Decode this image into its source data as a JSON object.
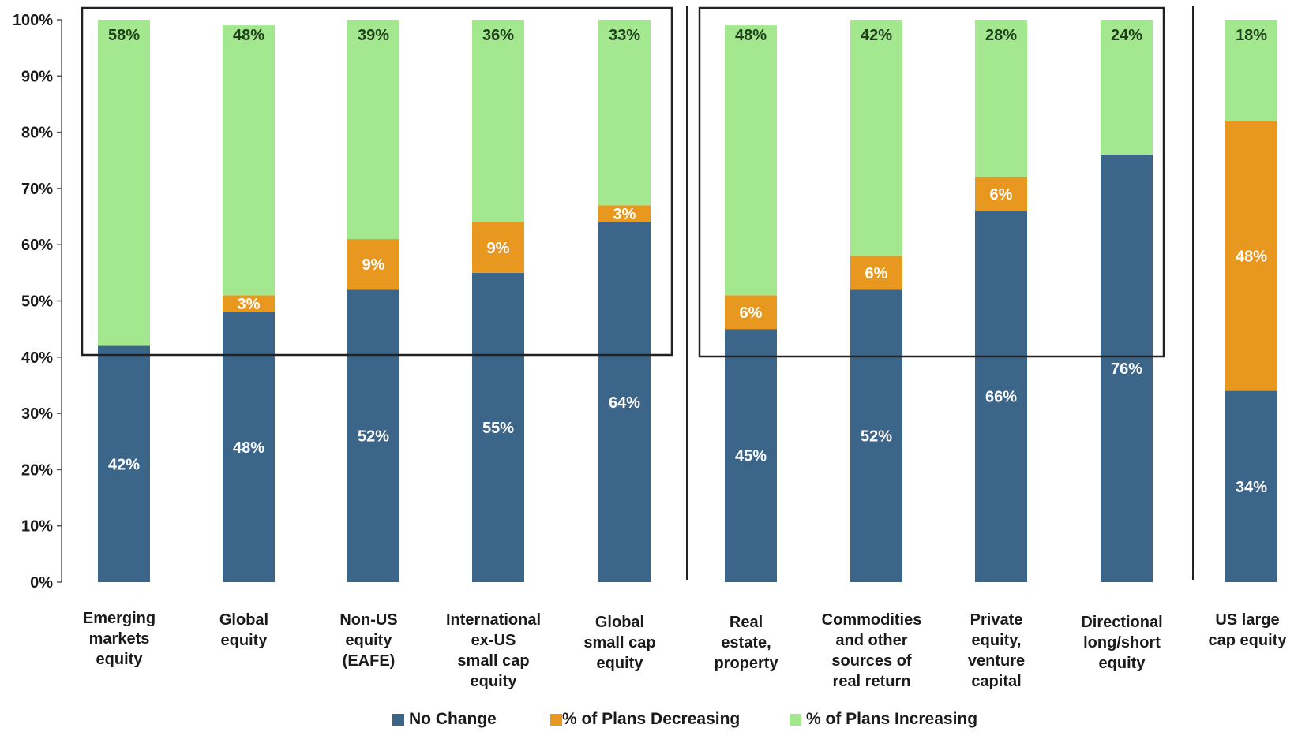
{
  "chart_data": {
    "type": "bar",
    "stacked": true,
    "categories": [
      [
        "Emerging",
        "markets",
        "equity"
      ],
      [
        "Global",
        "equity"
      ],
      [
        "Non-US",
        "equity",
        "(EAFE)"
      ],
      [
        "International",
        "ex-US",
        "small cap",
        "equity"
      ],
      [
        "Global",
        "small cap",
        "equity"
      ],
      [
        "Real",
        "estate,",
        "property"
      ],
      [
        "Commodities",
        "and other",
        "sources of",
        "real return"
      ],
      [
        "Private",
        "equity,",
        "venture",
        "capital"
      ],
      [
        "Directional",
        "long/short",
        "equity"
      ],
      [
        "US large",
        "cap equity"
      ]
    ],
    "series": [
      {
        "name": "No Change",
        "color": "#3b6589",
        "values": [
          42,
          48,
          52,
          55,
          64,
          45,
          52,
          66,
          76,
          34
        ],
        "labels": [
          "42%",
          "48%",
          "52%",
          "55%",
          "64%",
          "45%",
          "52%",
          "66%",
          "76%",
          "34%"
        ]
      },
      {
        "name": "% of Plans Decreasing",
        "color": "#e8981f",
        "values": [
          0,
          3,
          9,
          9,
          3,
          6,
          6,
          6,
          0,
          48
        ],
        "labels": [
          "",
          "3%",
          "9%",
          "9%",
          "3%",
          "6%",
          "6%",
          "6%",
          "",
          "48%"
        ]
      },
      {
        "name": "% of Plans Increasing",
        "color": "#a3e88f",
        "values": [
          58,
          48,
          39,
          36,
          33,
          48,
          42,
          28,
          24,
          18
        ],
        "labels": [
          "58%",
          "48%",
          "39%",
          "36%",
          "33%",
          "48%",
          "42%",
          "28%",
          "24%",
          "18%"
        ]
      }
    ],
    "y_ticks": [
      "0%",
      "10%",
      "20%",
      "30%",
      "40%",
      "50%",
      "60%",
      "70%",
      "80%",
      "90%",
      "100%"
    ],
    "ylim": [
      0,
      100
    ],
    "title": "",
    "xlabel": "",
    "ylabel": "",
    "legend_position": "bottom",
    "grid": false,
    "annotations": "boxes highlight the upper part of the first five and the next four bars"
  },
  "legend": [
    {
      "label": "No Change",
      "color": "#3b6589"
    },
    {
      "label": "% of Plans Decreasing",
      "color": "#e8981f"
    },
    {
      "label": "% of Plans Increasing",
      "color": "#a3e88f"
    }
  ]
}
